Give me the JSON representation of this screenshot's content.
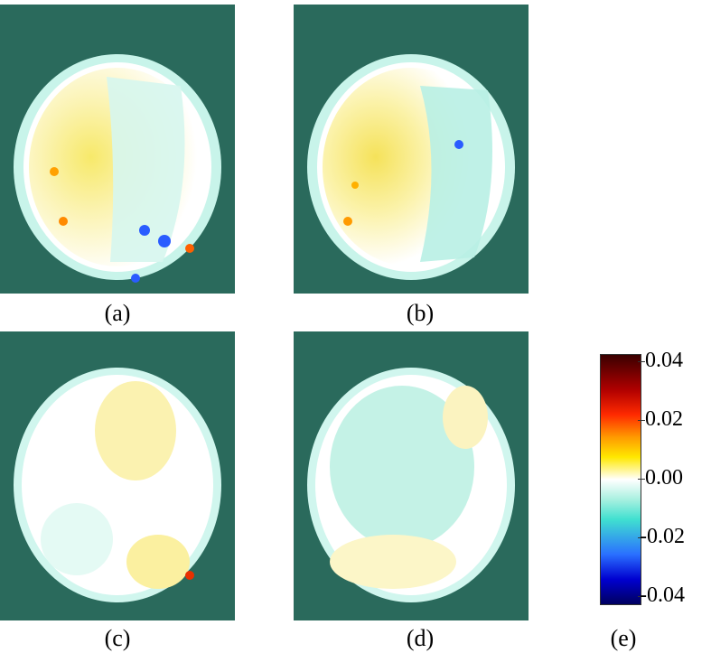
{
  "panels": [
    {
      "caption": "(a)"
    },
    {
      "caption": "(b)"
    },
    {
      "caption": "(c)"
    },
    {
      "caption": "(d)"
    }
  ],
  "colorbar": {
    "caption": "(e)",
    "ticks": [
      "0.04",
      "0.02",
      "0.00",
      "-0.02",
      "-0.04"
    ],
    "colors": {
      "max": "#3a0000",
      "positive": "#ff2a00",
      "mid_positive": "#ffe800",
      "zero": "#ffffff",
      "mid_negative": "#40e0d0",
      "negative": "#2a70ff",
      "min": "#000060"
    }
  },
  "background_color": "#2a6a5c"
}
